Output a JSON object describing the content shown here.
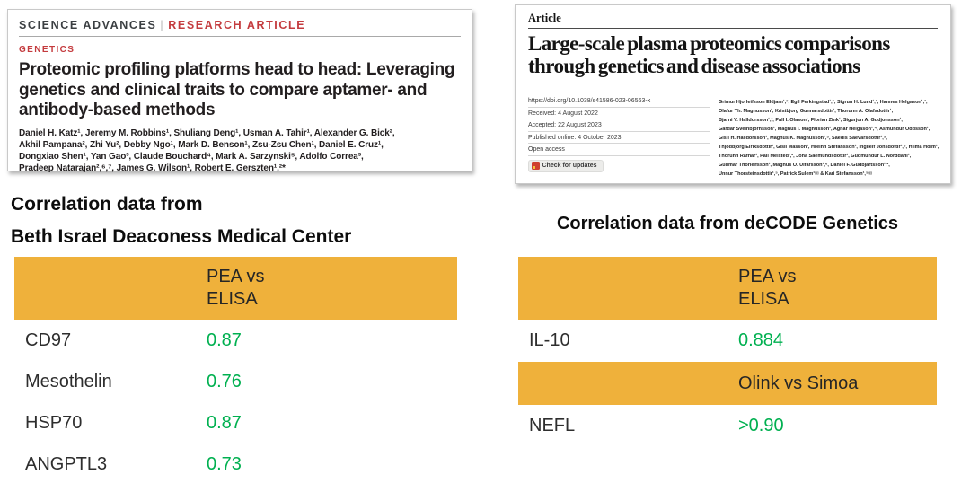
{
  "left_paper": {
    "journal": "SCIENCE ADVANCES",
    "separator": "|",
    "article_type": "RESEARCH ARTICLE",
    "section": "GENETICS",
    "title_lines": [
      "Proteomic profiling platforms head to head: Leveraging",
      "genetics and clinical traits to compare aptamer- and",
      "antibody-based methods"
    ],
    "author_lines": [
      "Daniel H. Katz¹, Jeremy M. Robbins¹, Shuliang Deng¹, Usman A. Tahir¹, Alexander G. Bick²,",
      "Akhil Pampana², Zhi Yu², Debby Ngo¹, Mark D. Benson¹, Zsu-Zsu Chen¹, Daniel E. Cruz¹,",
      "Dongxiao Shen¹, Yan Gao³, Claude Bouchard⁴, Mark A. Sarzynski⁵, Adolfo Correa³,",
      "Pradeep Natarajan²,⁶,⁷, James G. Wilson¹, Robert E. Gerszten¹,²*"
    ]
  },
  "right_paper": {
    "label": "Article",
    "title_lines": [
      "Large-scale plasma proteomics comparisons",
      "through genetics and disease associations"
    ],
    "meta": {
      "doi": "https://doi.org/10.1038/s41586-023-06563-x",
      "received": "Received: 4 August 2022",
      "accepted": "Accepted: 22 August 2023",
      "published": "Published online: 4 October 2023",
      "open_access": "Open access",
      "check_updates": "Check for updates"
    },
    "author_lines": [
      "Grimur Hjorleifsson Eldjarn¹,⁷, Egil Ferkingstad¹,⁷, Sigrun H. Lund¹,², Hannes Helgason¹,²,",
      "Olafur Th. Magnusson¹, Kristbjorg Gunnarsdottir¹, Thorunn A. Olafsdottir¹,",
      "Bjarni V. Halldorsson¹,³, Pall I. Olason¹, Florian Zink¹, Sigurjon A. Gudjonsson¹,",
      "Gardar Sveinbjornsson¹, Magnus I. Magnusson¹, Agnar Helgason¹,⁴, Asmundur Oddsson¹,",
      "Gisli H. Halldorsson¹, Magnus K. Magnusson¹,⁵, Saedis Saevarsdottir¹,⁵,",
      "Thjodbjorg Eiriksdottir¹, Gisli Masson¹, Hreinn Stefansson¹, Ingileif Jonsdottir¹,⁵, Hilma Holm¹,",
      "Thorunn Rafnar¹, Pall Melsted¹,², Jona Saemundsdottir¹, Gudmundur L. Norddahl¹,",
      "Gudmar Thorleifsson¹, Magnus O. Ulfarsson¹,⁶, Daniel F. Gudbjartsson¹,²,",
      "Unnur Thorsteinsdottir¹,⁵, Patrick Sulem¹✉ & Kari Stefansson¹,⁵✉"
    ]
  },
  "left_section": {
    "heading_line1": "Correlation data from",
    "heading_line2": "Beth Israel Deaconess Medical Center",
    "table": {
      "header_line1": "PEA vs",
      "header_line2": "ELISA",
      "rows": [
        {
          "protein": "CD97",
          "value": "0.87"
        },
        {
          "protein": "Mesothelin",
          "value": "0.76"
        },
        {
          "protein": "HSP70",
          "value": "0.87"
        },
        {
          "protein": "ANGPTL3",
          "value": "0.73"
        }
      ]
    }
  },
  "right_section": {
    "heading": "Correlation data from deCODE Genetics",
    "table_pea": {
      "header_line1": "PEA vs",
      "header_line2": "ELISA",
      "rows": [
        {
          "protein": "IL-10",
          "value": "0.884"
        }
      ]
    },
    "table_olink": {
      "header": "Olink vs Simoa",
      "rows": [
        {
          "protein": "NEFL",
          "value": ">0.90"
        }
      ]
    }
  },
  "colors": {
    "table_header_orange": "#EFB13B",
    "value_green": "#00B050",
    "journal_red": "#C43B3E"
  }
}
